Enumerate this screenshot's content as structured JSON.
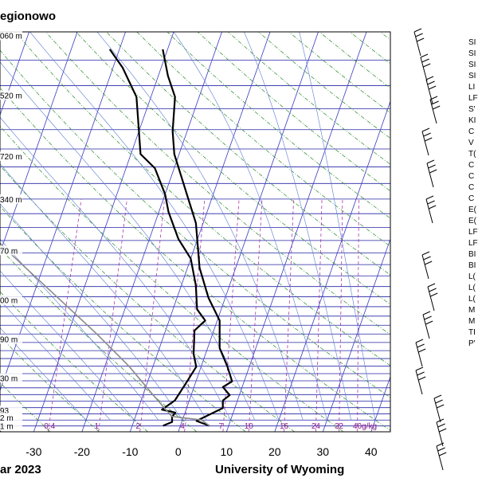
{
  "chart_data": {
    "type": "line",
    "title": "egionowo",
    "footer_left": "ar 2023",
    "footer_right": "University of Wyoming",
    "x_ticks": [
      "-30",
      "-20",
      "-10",
      "0",
      "10",
      "20",
      "30",
      "40"
    ],
    "x_tick_values": [
      -30,
      -20,
      -10,
      0,
      10,
      20,
      30,
      40
    ],
    "xlim": [
      -37,
      44
    ],
    "height_labels": [
      {
        "text": "060 m",
        "p": 203
      },
      {
        "text": "520 m",
        "p": 260
      },
      {
        "text": "720 m",
        "p": 335
      },
      {
        "text": "340 m",
        "p": 400
      },
      {
        "text": "70 m",
        "p": 495
      },
      {
        "text": "00 m",
        "p": 608
      },
      {
        "text": "90 m",
        "p": 715
      },
      {
        "text": "30 m",
        "p": 840
      },
      {
        "text": "93",
        "p": 960
      },
      {
        "text": "2 m",
        "p": 990
      },
      {
        "text": "1 m",
        "p": 1025
      }
    ],
    "plim": [
      1050,
      200
    ],
    "mixing_ratio_labels": [
      "0.4",
      "1",
      "2",
      "4",
      "7",
      "10",
      "16",
      "24",
      "32",
      "40g/kg"
    ],
    "mixing_ratio_values": [
      0.4,
      1,
      2,
      4,
      7,
      10,
      16,
      24,
      32,
      40
    ],
    "series": [
      {
        "kind": "temperature",
        "points": [
          {
            "x": 6.0,
            "p": 1024
          },
          {
            "x": 3.0,
            "p": 1004
          },
          {
            "x": 5.0,
            "p": 980
          },
          {
            "x": 7.5,
            "p": 952
          },
          {
            "x": 7.0,
            "p": 922
          },
          {
            "x": 8.0,
            "p": 902
          },
          {
            "x": 6.0,
            "p": 872
          },
          {
            "x": 7.5,
            "p": 852
          },
          {
            "x": 5.5,
            "p": 802
          },
          {
            "x": 2.5,
            "p": 742
          },
          {
            "x": 0.5,
            "p": 662
          },
          {
            "x": -3.5,
            "p": 602
          },
          {
            "x": -7.5,
            "p": 532
          },
          {
            "x": -11.5,
            "p": 442
          },
          {
            "x": -15.5,
            "p": 392
          },
          {
            "x": -21.0,
            "p": 332
          },
          {
            "x": -23.0,
            "p": 302
          },
          {
            "x": -25.0,
            "p": 262
          },
          {
            "x": -28.0,
            "p": 240
          },
          {
            "x": -31.0,
            "p": 215
          }
        ]
      },
      {
        "kind": "dewpoint",
        "points": [
          {
            "x": -3.6,
            "p": 1024
          },
          {
            "x": -2.0,
            "p": 1008
          },
          {
            "x": -2.4,
            "p": 987
          },
          {
            "x": -2.0,
            "p": 970
          },
          {
            "x": -5.0,
            "p": 958
          },
          {
            "x": -3.0,
            "p": 922
          },
          {
            "x": -2.0,
            "p": 862
          },
          {
            "x": -1.0,
            "p": 802
          },
          {
            "x": -2.5,
            "p": 760
          },
          {
            "x": -3.5,
            "p": 712
          },
          {
            "x": -4.0,
            "p": 690
          },
          {
            "x": -2.5,
            "p": 662
          },
          {
            "x": -5.0,
            "p": 632
          },
          {
            "x": -7.0,
            "p": 572
          },
          {
            "x": -10.0,
            "p": 512
          },
          {
            "x": -14.0,
            "p": 472
          },
          {
            "x": -18.0,
            "p": 422
          },
          {
            "x": -20.0,
            "p": 392
          },
          {
            "x": -24.0,
            "p": 352
          },
          {
            "x": -28.0,
            "p": 332
          },
          {
            "x": -30.0,
            "p": 302
          },
          {
            "x": -33.0,
            "p": 262
          },
          {
            "x": -38.0,
            "p": 232
          },
          {
            "x": -42.0,
            "p": 215
          }
        ]
      },
      {
        "kind": "parcel",
        "points": [
          {
            "x": 6.0,
            "p": 1024
          },
          {
            "x": 4.0,
            "p": 1000
          },
          {
            "x": -2.5,
            "p": 985
          },
          {
            "x": -8.0,
            "p": 900
          },
          {
            "x": -15.0,
            "p": 800
          },
          {
            "x": -24.0,
            "p": 700
          },
          {
            "x": -35.0,
            "p": 600
          },
          {
            "x": -48.0,
            "p": 500
          },
          {
            "x": -63.0,
            "p": 400
          }
        ]
      }
    ],
    "station_index_labels": [
      "SI",
      "SI",
      "SI",
      "SI",
      "LI",
      "LF",
      "S'",
      "KI",
      "C",
      "V",
      "T(",
      "C",
      "C",
      "C",
      "C",
      "E(",
      "E(",
      "LF",
      "LF",
      "BI",
      "BI",
      "L(",
      "L(",
      "L(",
      "M",
      "M",
      "TI",
      "P'"
    ],
    "grid": true,
    "colors": {
      "isobar": "#2424a6",
      "isotherm": "#3a3ac0",
      "dry_adiabat": "#2a8a2a",
      "moist_adiabat": "#5a7ad0",
      "mixing_ratio": "#a020a0",
      "curves": "#000000",
      "parcel": "#8a8a8a"
    }
  }
}
